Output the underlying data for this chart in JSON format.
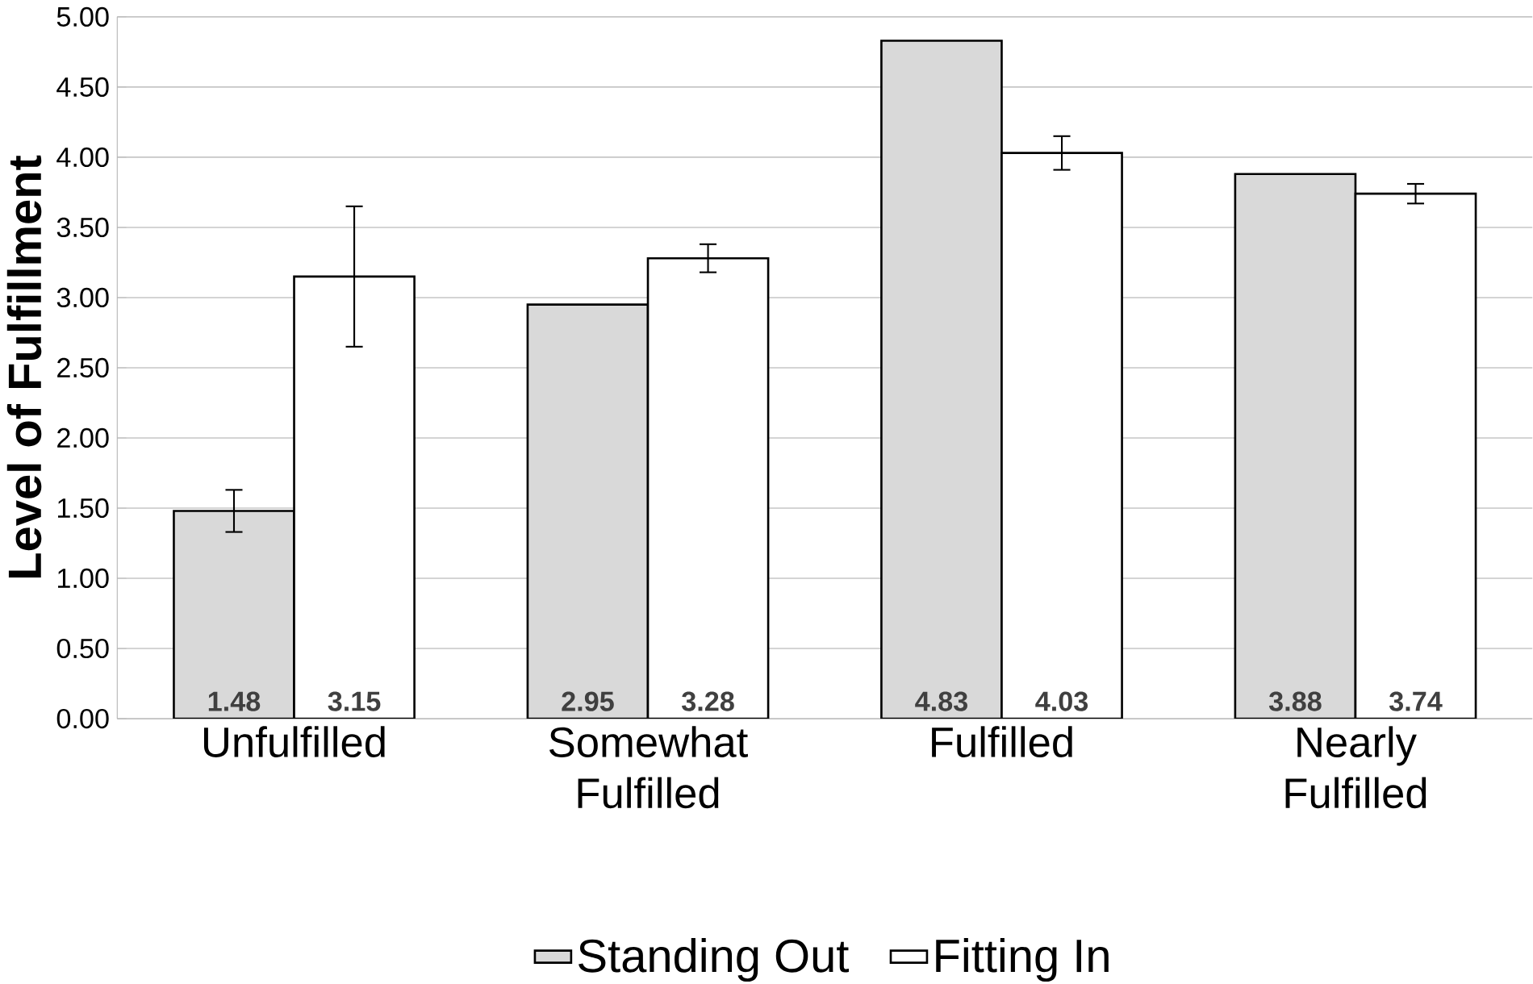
{
  "chart_data": {
    "type": "bar",
    "ylabel": "Level of Fulfillment",
    "categories": [
      "Unfulfilled",
      "Somewhat Fulfilled",
      "Fulfilled",
      "Nearly Fulfilled"
    ],
    "series": [
      {
        "name": "Standing Out",
        "color": "#d9d9d9",
        "values": [
          1.48,
          2.95,
          4.83,
          3.88
        ],
        "errors": [
          0.15,
          null,
          null,
          null
        ]
      },
      {
        "name": "Fitting In",
        "color": "#ffffff",
        "values": [
          3.15,
          3.28,
          4.03,
          3.74
        ],
        "errors": [
          0.5,
          0.1,
          0.12,
          0.07
        ]
      }
    ],
    "ylim": [
      0,
      5
    ],
    "yticks": [
      {
        "value": 0,
        "label": "0.00"
      },
      {
        "value": 0.5,
        "label": "0.50"
      },
      {
        "value": 1,
        "label": "1.00"
      },
      {
        "value": 1.5,
        "label": "1.50"
      },
      {
        "value": 2,
        "label": "2.00"
      },
      {
        "value": 2.5,
        "label": "2.50"
      },
      {
        "value": 3,
        "label": "3.00"
      },
      {
        "value": 3.5,
        "label": "3.50"
      },
      {
        "value": 4,
        "label": "4.00"
      },
      {
        "value": 4.5,
        "label": "4.50"
      },
      {
        "value": 5,
        "label": "5.00"
      }
    ],
    "grid": "y",
    "legend": "bottom",
    "data_labels": true
  }
}
